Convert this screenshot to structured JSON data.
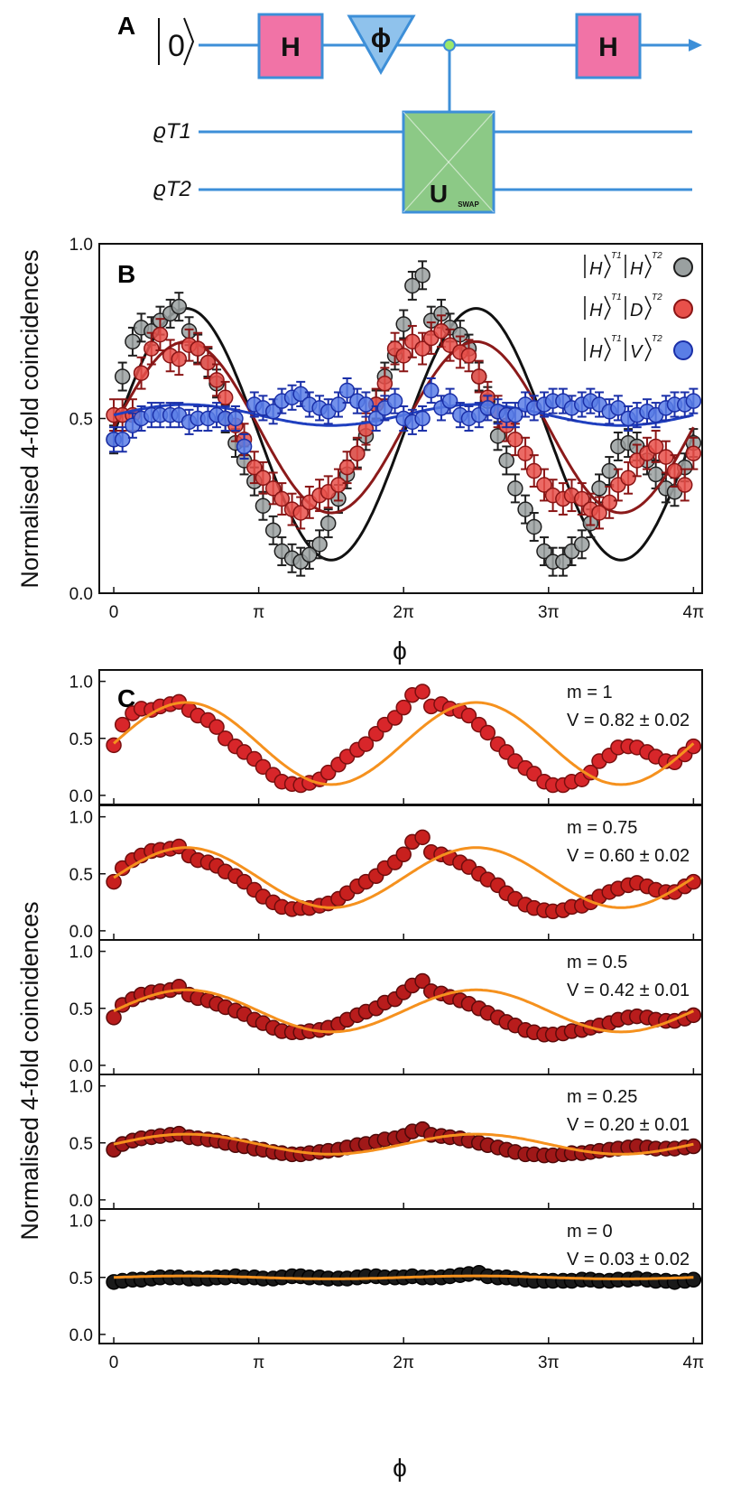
{
  "panel_a": {
    "label": "A",
    "input_state": "|0⟩",
    "hadamard_1": "H",
    "phase_gate": "ϕ",
    "hadamard_2": "H",
    "target_1": "ϱT1",
    "target_2": "ϱT2",
    "swap_gate": "U",
    "swap_subscript": "SWAP",
    "colors": {
      "wire": "#3d8fd8",
      "hadamard": "#f173a6",
      "phase": "#8fc2ec",
      "swap": "#8cc986"
    }
  },
  "chart_data": [
    {
      "panel": "B",
      "type": "scatter",
      "title": "",
      "xlabel": "ϕ",
      "ylabel": "Normalised 4-fold coincidences",
      "xlim": [
        -0.1,
        4.06
      ],
      "xunit": "pi",
      "ylim": [
        0,
        1.0
      ],
      "yticks": [
        0.0,
        0.5,
        1.0
      ],
      "ytick_labels": [
        "0.0",
        "0.5",
        "1.0"
      ],
      "xticks": [
        0,
        1,
        2,
        3,
        4
      ],
      "xtick_labels": [
        "0",
        "π",
        "2π",
        "3π",
        "4π"
      ],
      "legend_position": "top-right",
      "x": [
        0.0,
        0.06,
        0.13,
        0.19,
        0.26,
        0.32,
        0.39,
        0.45,
        0.52,
        0.58,
        0.65,
        0.71,
        0.77,
        0.84,
        0.9,
        0.97,
        1.03,
        1.1,
        1.16,
        1.23,
        1.29,
        1.35,
        1.42,
        1.48,
        1.55,
        1.61,
        1.68,
        1.74,
        1.81,
        1.87,
        1.94,
        2.0,
        2.06,
        2.13,
        2.19,
        2.26,
        2.32,
        2.39,
        2.45,
        2.52,
        2.58,
        2.65,
        2.71,
        2.77,
        2.84,
        2.9,
        2.97,
        3.03,
        3.1,
        3.16,
        3.23,
        3.29,
        3.35,
        3.42,
        3.48,
        3.55,
        3.61,
        3.68,
        3.74,
        3.81,
        3.87,
        3.94,
        4.0
      ],
      "series": [
        {
          "name": "|H⟩T1|H⟩T2",
          "color": "#9aa0a0",
          "edge": "#1f1f1f",
          "fit_color": "#111111",
          "fit": {
            "offset": 0.455,
            "amplitude": 0.36,
            "phase_peak": 0.5,
            "period": 2
          },
          "values": [
            0.44,
            0.62,
            0.72,
            0.76,
            0.75,
            0.78,
            0.8,
            0.82,
            0.75,
            0.7,
            0.66,
            0.6,
            0.5,
            0.43,
            0.38,
            0.32,
            0.25,
            0.18,
            0.12,
            0.1,
            0.09,
            0.11,
            0.14,
            0.2,
            0.27,
            0.34,
            0.4,
            0.45,
            0.54,
            0.62,
            0.68,
            0.77,
            0.88,
            0.91,
            0.78,
            0.8,
            0.76,
            0.74,
            0.7,
            0.62,
            0.55,
            0.45,
            0.38,
            0.3,
            0.24,
            0.19,
            0.12,
            0.09,
            0.09,
            0.12,
            0.14,
            0.2,
            0.3,
            0.35,
            0.42,
            0.43,
            0.42,
            0.38,
            0.34,
            0.3,
            0.29,
            0.36,
            0.43
          ],
          "errors": 0.04
        },
        {
          "name": "|H⟩T1|D⟩T2",
          "color": "#e8504a",
          "edge": "#8a1515",
          "fit_color": "#8b1a1a",
          "fit": {
            "offset": 0.475,
            "amplitude": 0.245,
            "phase_peak": 0.5,
            "period": 2
          },
          "values": [
            0.51,
            0.51,
            0.51,
            0.63,
            0.7,
            0.74,
            0.68,
            0.67,
            0.71,
            0.7,
            0.66,
            0.61,
            0.56,
            0.48,
            0.44,
            0.36,
            0.33,
            0.3,
            0.27,
            0.24,
            0.23,
            0.26,
            0.28,
            0.29,
            0.31,
            0.36,
            0.4,
            0.47,
            0.54,
            0.6,
            0.7,
            0.68,
            0.72,
            0.7,
            0.73,
            0.75,
            0.71,
            0.69,
            0.68,
            0.62,
            0.56,
            0.52,
            0.48,
            0.44,
            0.4,
            0.35,
            0.31,
            0.28,
            0.27,
            0.28,
            0.27,
            0.24,
            0.23,
            0.26,
            0.31,
            0.33,
            0.38,
            0.4,
            0.42,
            0.39,
            0.35,
            0.31,
            0.4
          ],
          "errors": 0.045
        },
        {
          "name": "|H⟩T1|V⟩T2",
          "color": "#5a7ee6",
          "edge": "#1a2fa8",
          "fit_color": "#1f3fbf",
          "fit": {
            "offset": 0.51,
            "amplitude": 0.03,
            "phase_peak": 0.5,
            "period": 2
          },
          "values": [
            0.44,
            0.44,
            0.48,
            0.5,
            0.51,
            0.51,
            0.51,
            0.51,
            0.49,
            0.5,
            0.5,
            0.51,
            0.5,
            0.5,
            0.42,
            0.54,
            0.53,
            0.52,
            0.55,
            0.56,
            0.57,
            0.54,
            0.53,
            0.52,
            0.54,
            0.58,
            0.55,
            0.54,
            0.5,
            0.53,
            0.55,
            0.5,
            0.49,
            0.5,
            0.58,
            0.53,
            0.55,
            0.51,
            0.5,
            0.51,
            0.53,
            0.52,
            0.51,
            0.51,
            0.54,
            0.53,
            0.54,
            0.55,
            0.55,
            0.53,
            0.54,
            0.55,
            0.54,
            0.52,
            0.53,
            0.5,
            0.51,
            0.52,
            0.51,
            0.53,
            0.54,
            0.54,
            0.55
          ],
          "errors": 0.035
        }
      ]
    },
    {
      "panel": "C",
      "type": "scatter",
      "xlabel": "ϕ",
      "ylabel": "Normalised 4-fold coincidences",
      "xlim": [
        -0.1,
        4.06
      ],
      "xunit": "pi",
      "ylim": [
        -0.08,
        1.1
      ],
      "yticks": [
        0.0,
        0.5,
        1.0
      ],
      "ytick_labels": [
        "0.0",
        "0.5",
        "1.0"
      ],
      "xticks": [
        0,
        1,
        2,
        3,
        4
      ],
      "xtick_labels": [
        "0",
        "π",
        "2π",
        "3π",
        "4π"
      ],
      "fit_color": "#f5911e",
      "x": [
        0.0,
        0.06,
        0.13,
        0.19,
        0.26,
        0.32,
        0.39,
        0.45,
        0.52,
        0.58,
        0.65,
        0.71,
        0.77,
        0.84,
        0.9,
        0.97,
        1.03,
        1.1,
        1.16,
        1.23,
        1.29,
        1.35,
        1.42,
        1.48,
        1.55,
        1.61,
        1.68,
        1.74,
        1.81,
        1.87,
        1.94,
        2.0,
        2.06,
        2.13,
        2.19,
        2.26,
        2.32,
        2.39,
        2.45,
        2.52,
        2.58,
        2.65,
        2.71,
        2.77,
        2.84,
        2.9,
        2.97,
        3.03,
        3.1,
        3.16,
        3.23,
        3.29,
        3.35,
        3.42,
        3.48,
        3.55,
        3.61,
        3.68,
        3.74,
        3.81,
        3.87,
        3.94,
        4.0
      ],
      "subplots": [
        {
          "m_label": "m = 1",
          "v_label": "V = 0.82 ± 0.02",
          "m": 1.0,
          "visibility": 0.82,
          "color": "#d8262a",
          "edge": "#7a0f0f",
          "values": [
            0.44,
            0.62,
            0.72,
            0.76,
            0.75,
            0.78,
            0.8,
            0.82,
            0.75,
            0.7,
            0.66,
            0.6,
            0.5,
            0.43,
            0.38,
            0.32,
            0.25,
            0.18,
            0.12,
            0.1,
            0.09,
            0.11,
            0.14,
            0.2,
            0.27,
            0.34,
            0.4,
            0.45,
            0.54,
            0.62,
            0.68,
            0.77,
            0.88,
            0.91,
            0.78,
            0.8,
            0.76,
            0.74,
            0.7,
            0.62,
            0.55,
            0.45,
            0.38,
            0.3,
            0.24,
            0.19,
            0.12,
            0.09,
            0.09,
            0.12,
            0.14,
            0.2,
            0.3,
            0.35,
            0.42,
            0.43,
            0.42,
            0.38,
            0.34,
            0.3,
            0.29,
            0.36,
            0.43
          ]
        },
        {
          "m_label": "m = 0.75",
          "v_label": "V = 0.60 ± 0.02",
          "m": 0.75,
          "visibility": 0.6,
          "color": "#c8201e",
          "edge": "#6e0d0d",
          "values": [
            0.43,
            0.55,
            0.62,
            0.66,
            0.7,
            0.71,
            0.72,
            0.74,
            0.66,
            0.62,
            0.6,
            0.57,
            0.52,
            0.48,
            0.43,
            0.36,
            0.3,
            0.25,
            0.21,
            0.19,
            0.2,
            0.2,
            0.22,
            0.24,
            0.28,
            0.33,
            0.39,
            0.43,
            0.48,
            0.55,
            0.6,
            0.67,
            0.78,
            0.82,
            0.69,
            0.67,
            0.64,
            0.6,
            0.56,
            0.5,
            0.45,
            0.4,
            0.33,
            0.28,
            0.23,
            0.2,
            0.18,
            0.17,
            0.18,
            0.21,
            0.22,
            0.25,
            0.3,
            0.34,
            0.37,
            0.4,
            0.42,
            0.39,
            0.36,
            0.34,
            0.34,
            0.39,
            0.43
          ]
        },
        {
          "m_label": "m = 0.5",
          "v_label": "V = 0.42 ± 0.01",
          "m": 0.5,
          "visibility": 0.42,
          "color": "#b81c1c",
          "edge": "#5e0b0b",
          "values": [
            0.42,
            0.53,
            0.58,
            0.62,
            0.64,
            0.65,
            0.66,
            0.69,
            0.62,
            0.59,
            0.57,
            0.54,
            0.51,
            0.48,
            0.45,
            0.4,
            0.37,
            0.33,
            0.3,
            0.29,
            0.29,
            0.3,
            0.31,
            0.33,
            0.36,
            0.4,
            0.44,
            0.47,
            0.5,
            0.55,
            0.58,
            0.64,
            0.7,
            0.74,
            0.65,
            0.63,
            0.6,
            0.57,
            0.54,
            0.5,
            0.46,
            0.42,
            0.38,
            0.35,
            0.31,
            0.29,
            0.27,
            0.27,
            0.28,
            0.3,
            0.31,
            0.33,
            0.35,
            0.37,
            0.4,
            0.42,
            0.43,
            0.42,
            0.4,
            0.39,
            0.39,
            0.41,
            0.44
          ]
        },
        {
          "m_label": "m = 0.25",
          "v_label": "V = 0.20 ± 0.01",
          "m": 0.25,
          "visibility": 0.2,
          "color": "#a01818",
          "edge": "#4d0909",
          "values": [
            0.44,
            0.49,
            0.52,
            0.54,
            0.55,
            0.56,
            0.57,
            0.58,
            0.55,
            0.54,
            0.53,
            0.52,
            0.5,
            0.48,
            0.47,
            0.45,
            0.44,
            0.42,
            0.41,
            0.4,
            0.4,
            0.41,
            0.42,
            0.43,
            0.44,
            0.46,
            0.48,
            0.49,
            0.51,
            0.53,
            0.54,
            0.56,
            0.6,
            0.62,
            0.57,
            0.56,
            0.55,
            0.54,
            0.52,
            0.5,
            0.48,
            0.46,
            0.44,
            0.42,
            0.4,
            0.4,
            0.39,
            0.39,
            0.4,
            0.41,
            0.41,
            0.42,
            0.43,
            0.44,
            0.45,
            0.46,
            0.47,
            0.46,
            0.45,
            0.45,
            0.45,
            0.46,
            0.47
          ]
        },
        {
          "m_label": "m = 0",
          "v_label": "V = 0.03 ± 0.02",
          "m": 0.0,
          "visibility": 0.03,
          "color": "#1a1a1a",
          "edge": "#000000",
          "values": [
            0.46,
            0.47,
            0.48,
            0.48,
            0.49,
            0.5,
            0.5,
            0.5,
            0.49,
            0.49,
            0.49,
            0.5,
            0.5,
            0.51,
            0.5,
            0.5,
            0.49,
            0.49,
            0.5,
            0.51,
            0.51,
            0.5,
            0.5,
            0.49,
            0.49,
            0.49,
            0.5,
            0.51,
            0.51,
            0.5,
            0.5,
            0.5,
            0.51,
            0.5,
            0.5,
            0.5,
            0.51,
            0.52,
            0.53,
            0.54,
            0.51,
            0.5,
            0.5,
            0.49,
            0.48,
            0.47,
            0.47,
            0.47,
            0.47,
            0.47,
            0.48,
            0.48,
            0.47,
            0.47,
            0.48,
            0.48,
            0.49,
            0.48,
            0.47,
            0.47,
            0.46,
            0.47,
            0.48
          ]
        }
      ]
    }
  ],
  "panel_b": {
    "label": "B",
    "legend": [
      {
        "ket1": "H",
        "ket2": "H",
        "sup1": "T1",
        "sup2": "T2"
      },
      {
        "ket1": "H",
        "ket2": "D",
        "sup1": "T1",
        "sup2": "T2"
      },
      {
        "ket1": "H",
        "ket2": "V",
        "sup1": "T1",
        "sup2": "T2"
      }
    ]
  },
  "panel_c": {
    "label": "C"
  }
}
